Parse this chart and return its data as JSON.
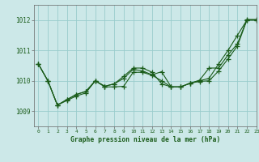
{
  "background_color": "#cce8e8",
  "grid_color": "#99cccc",
  "line_color": "#1a5c1a",
  "title": "Graphe pression niveau de la mer (hPa)",
  "xlim": [
    -0.5,
    23
  ],
  "ylim": [
    1008.5,
    1012.5
  ],
  "yticks": [
    1009,
    1010,
    1011,
    1012
  ],
  "xticks": [
    0,
    1,
    2,
    3,
    4,
    5,
    6,
    7,
    8,
    9,
    10,
    11,
    12,
    13,
    14,
    15,
    16,
    17,
    18,
    19,
    20,
    21,
    22,
    23
  ],
  "series1": [
    1010.55,
    1010.0,
    1009.2,
    1009.35,
    1009.5,
    1009.6,
    1010.0,
    1009.8,
    1009.8,
    1009.82,
    1010.28,
    1010.28,
    1010.18,
    1010.0,
    1009.8,
    1009.8,
    1009.92,
    1009.98,
    1010.0,
    1010.32,
    1010.72,
    1011.15,
    1012.0,
    1012.0
  ],
  "series2": [
    1010.55,
    1010.0,
    1009.2,
    1009.38,
    1009.55,
    1009.65,
    1010.0,
    1009.82,
    1009.9,
    1010.08,
    1010.38,
    1010.32,
    1010.2,
    1010.3,
    1009.8,
    1009.8,
    1009.92,
    1010.0,
    1010.08,
    1010.55,
    1011.0,
    1011.5,
    1012.0,
    1012.0
  ],
  "series3": [
    1010.55,
    1010.0,
    1009.2,
    1009.38,
    1009.55,
    1009.65,
    1010.0,
    1009.82,
    1009.9,
    1010.15,
    1010.42,
    1010.42,
    1010.28,
    1009.9,
    1009.8,
    1009.8,
    1009.92,
    1010.02,
    1010.42,
    1010.42,
    1010.85,
    1011.22,
    1012.02,
    1012.02
  ],
  "marker": "+",
  "markersize": 4.5,
  "linewidth": 0.8
}
